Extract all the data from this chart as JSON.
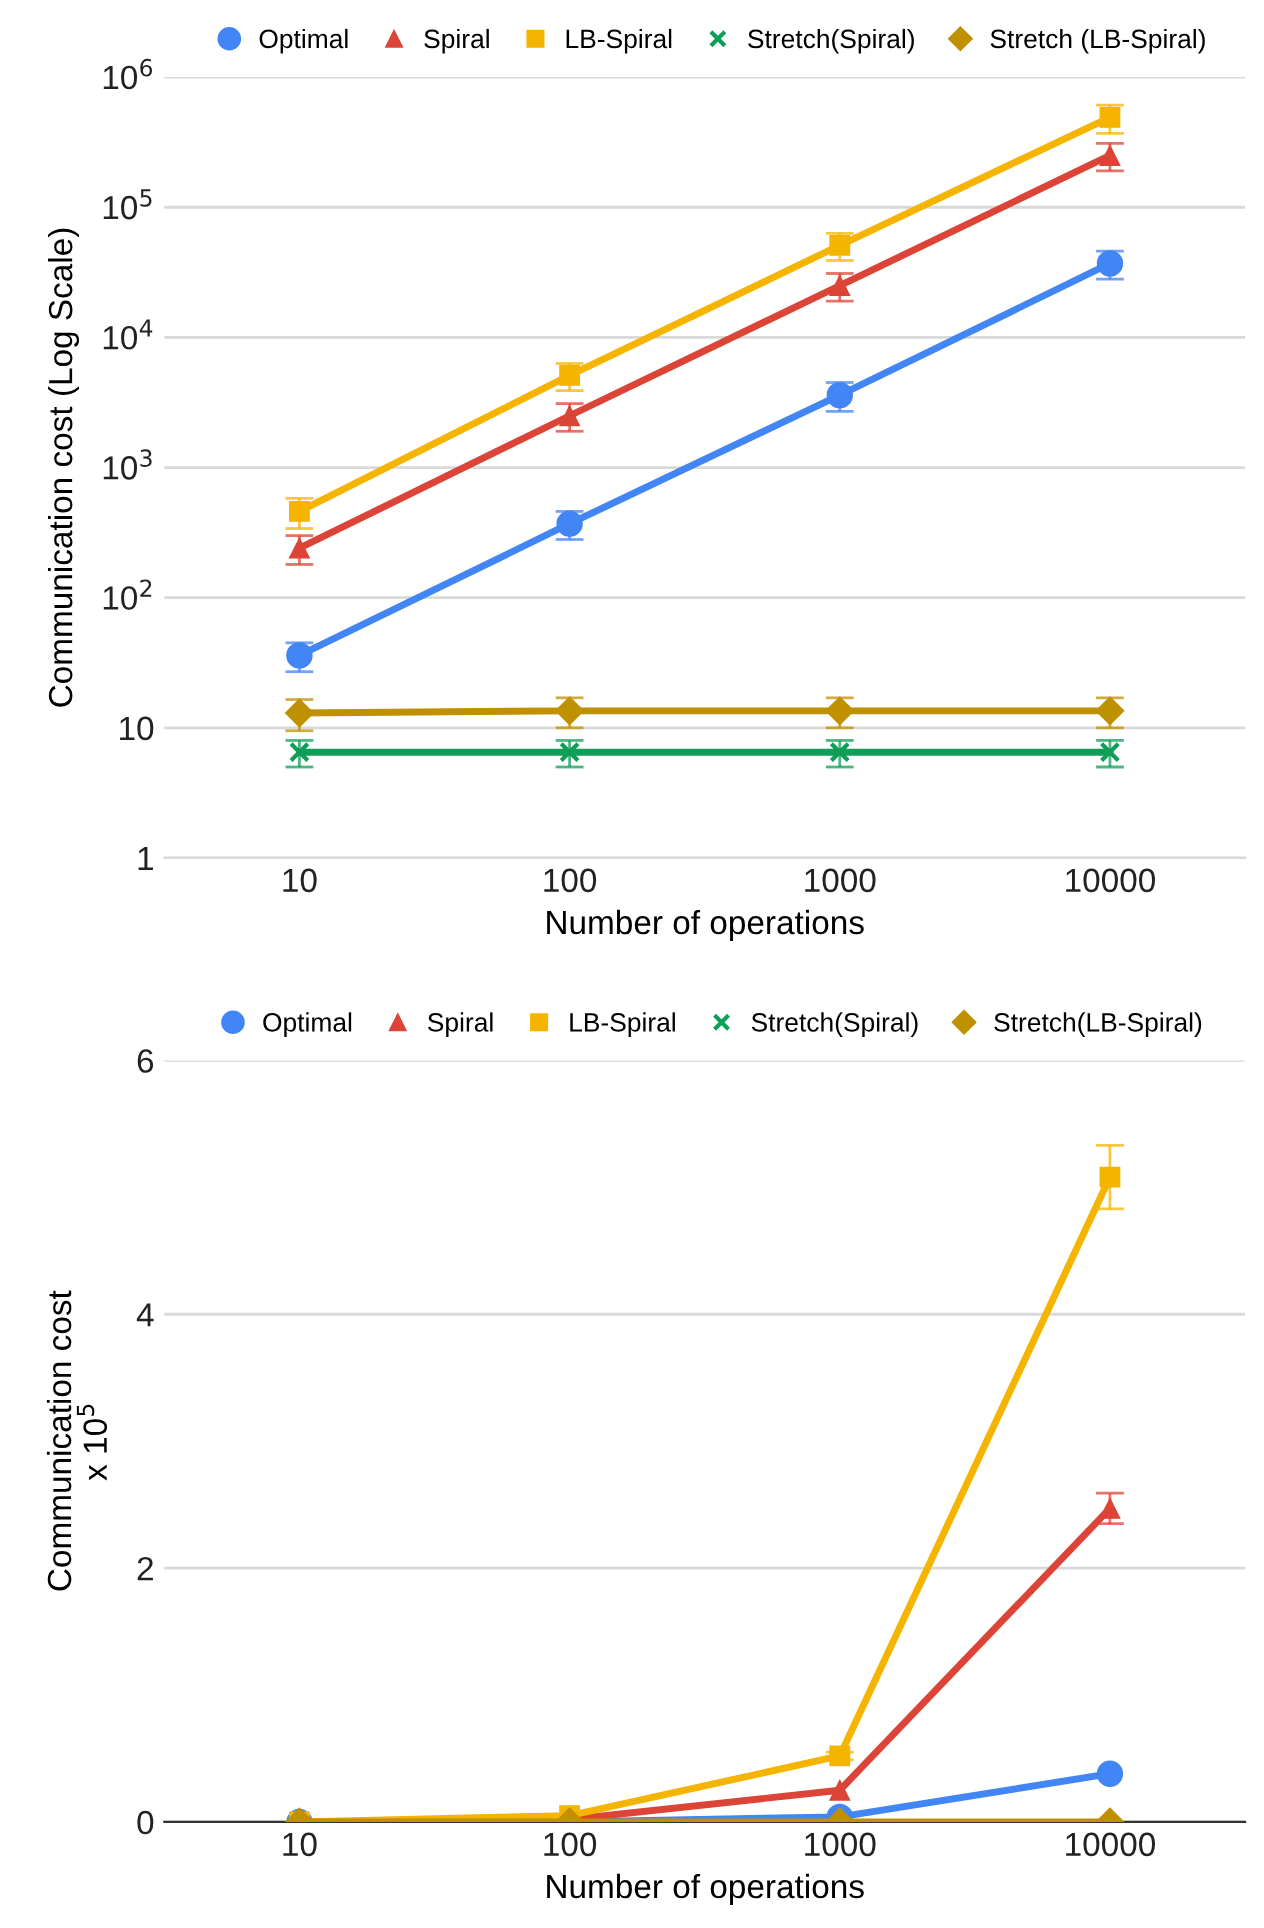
{
  "chart_data": [
    {
      "type": "line",
      "xlabel": "Number of operations",
      "ylabel": "Communication cost (Log Scale)",
      "categories": [
        "10",
        "100",
        "1000",
        "10000"
      ],
      "log": "y",
      "ylim": [
        1,
        1000000
      ],
      "yticks": [
        1,
        10,
        {
          "value": 100,
          "label": "10$^{2}$"
        },
        {
          "value": 1000,
          "label": "10$^{3}$"
        },
        {
          "value": 10000,
          "label": "10$^{4}$"
        },
        {
          "value": 100000,
          "label": "10$^{5}$"
        },
        {
          "value": 1000000,
          "label": "10$^{6}$"
        }
      ],
      "grid": "y",
      "legend": "top",
      "series": [
        {
          "name": "Optimal",
          "color": "#4285f4",
          "marker": "circle",
          "values": [
            36,
            370,
            3600,
            37000
          ],
          "errors": [
            9,
            90,
            900,
            9000
          ]
        },
        {
          "name": "Spiral",
          "color": "#db4437",
          "marker": "triangle",
          "values": [
            240,
            2500,
            25000,
            250000
          ],
          "errors": [
            60,
            600,
            6000,
            60000
          ]
        },
        {
          "name": "LB-Spiral",
          "color": "#f4b400",
          "marker": "square",
          "values": [
            460,
            5100,
            51000,
            490000
          ],
          "errors": [
            120,
            1200,
            12000,
            120000
          ]
        },
        {
          "name": "Stretch(Spiral)",
          "color": "#0f9d58",
          "marker": "cross",
          "values": [
            6.5,
            6.5,
            6.5,
            6.5
          ],
          "errors": [
            1.5,
            1.5,
            1.5,
            1.5
          ]
        },
        {
          "name": "Stretch (LB-Spiral)",
          "color": "#bf9000",
          "marker": "diamond",
          "values": [
            13,
            13.5,
            13.5,
            13.5
          ],
          "errors": [
            3.5,
            3.5,
            3.5,
            3.5
          ]
        }
      ]
    },
    {
      "type": "line",
      "xlabel": "Number of operations",
      "ylabel": "Communication cost\nx 10$^{5}$",
      "categories": [
        "10",
        "100",
        "1000",
        "10000"
      ],
      "ylim": [
        0,
        6
      ],
      "yticks": [
        0,
        2,
        4,
        6
      ],
      "grid": "y",
      "legend": "top",
      "series": [
        {
          "name": "Optimal",
          "color": "#4285f4",
          "marker": "circle",
          "values": [
            0,
            0,
            0.04,
            0.38
          ]
        },
        {
          "name": "Spiral",
          "color": "#db4437",
          "marker": "triangle",
          "values": [
            0,
            0.02,
            0.25,
            2.47
          ],
          "errors": [
            null,
            null,
            null,
            0.12
          ]
        },
        {
          "name": "LB-Spiral",
          "color": "#f4b400",
          "marker": "square",
          "values": [
            0,
            0.05,
            0.52,
            5.08
          ],
          "errors": [
            null,
            null,
            0.03,
            0.25
          ]
        },
        {
          "name": "Stretch(Spiral)",
          "color": "#0f9d58",
          "marker": "cross",
          "values": [
            null,
            null,
            null,
            null
          ]
        },
        {
          "name": "Stretch(LB-Spiral)",
          "color": "#bf9000",
          "marker": "diamond",
          "values": [
            0,
            0,
            0,
            0
          ]
        }
      ]
    }
  ]
}
